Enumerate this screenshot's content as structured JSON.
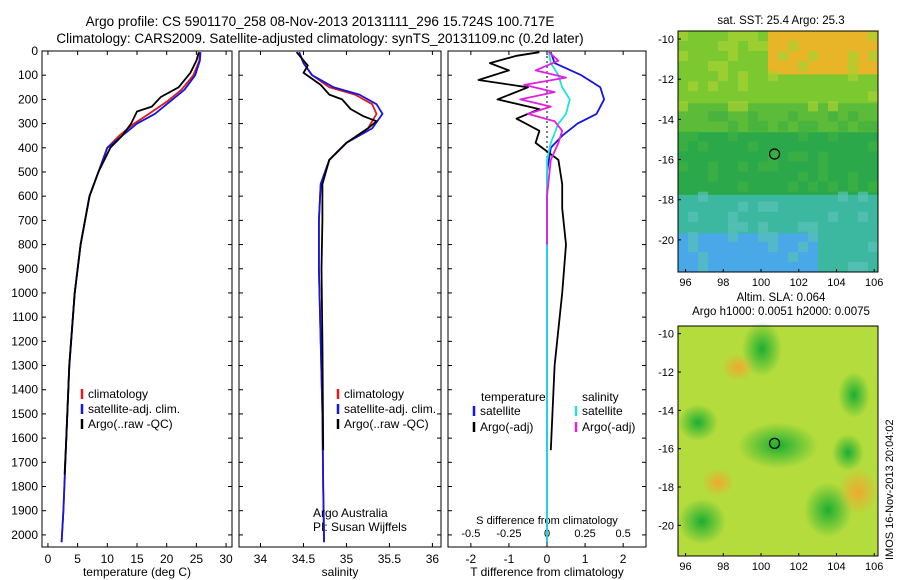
{
  "header": {
    "line1": "Argo profile: CS 5901170_258 08-Nov-2013 20131111_296 15.724S 100.717E",
    "line2": "Climatology: CARS2009. Satellite-adjusted climatology: synTS_20131109.nc (0.2d later)"
  },
  "colors": {
    "climatology": "#e31a1c",
    "satellite": "#1515e0",
    "argo": "#000000",
    "sat_salinity": "#22e0e0",
    "argo_salinity": "#e020e0"
  },
  "chart_data": [
    {
      "type": "line",
      "id": "temperature",
      "xlabel": "temperature (deg C)",
      "xlim": [
        -1,
        31
      ],
      "xticks": [
        0,
        5,
        10,
        15,
        20,
        25,
        30
      ],
      "ylim": [
        2050,
        0
      ],
      "yticks": [
        0,
        100,
        200,
        300,
        400,
        500,
        600,
        700,
        800,
        900,
        1000,
        1100,
        1200,
        1300,
        1400,
        1500,
        1600,
        1700,
        1800,
        1900,
        2000
      ],
      "legend": [
        "climatology",
        "satellite-adj. clim.",
        "Argo(..raw -QC)"
      ],
      "series": [
        {
          "name": "climatology",
          "color": "#e31a1c",
          "x": [
            25.6,
            25.5,
            24.5,
            22.5,
            20,
            17,
            14.5,
            12,
            10,
            8.5,
            7,
            5.5,
            4.5,
            3.6,
            3.1,
            2.6,
            2.3
          ],
          "y": [
            5,
            40,
            100,
            160,
            210,
            260,
            300,
            350,
            400,
            500,
            600,
            800,
            1000,
            1300,
            1600,
            1900,
            2030
          ]
        },
        {
          "name": "satellite-adj. clim.",
          "color": "#1515e0",
          "x": [
            25.7,
            25.6,
            24.8,
            23,
            20.5,
            18,
            15,
            12.5,
            10,
            8.5,
            7,
            5.5,
            4.5,
            3.6,
            3.1,
            2.6,
            2.3
          ],
          "y": [
            5,
            40,
            100,
            160,
            210,
            260,
            300,
            350,
            400,
            500,
            600,
            800,
            1000,
            1300,
            1600,
            1900,
            2030
          ]
        },
        {
          "name": "Argo(..raw -QC)",
          "color": "#000000",
          "x": [
            25.4,
            25,
            24,
            22,
            19,
            17.5,
            15,
            14,
            12.5,
            10.5,
            8.5,
            7,
            5.5,
            4.5,
            3.6,
            3.1,
            2.8
          ],
          "y": [
            5,
            40,
            90,
            150,
            190,
            230,
            250,
            300,
            350,
            400,
            500,
            600,
            800,
            1000,
            1300,
            1600,
            1750
          ]
        }
      ]
    },
    {
      "type": "line",
      "id": "salinity",
      "xlabel": "salinity",
      "xlim": [
        33.75,
        36.1
      ],
      "xticks": [
        34,
        34.5,
        35,
        35.5,
        36
      ],
      "ylim": [
        2050,
        0
      ],
      "yticks": [
        0,
        100,
        200,
        300,
        400,
        500,
        600,
        700,
        800,
        900,
        1000,
        1100,
        1200,
        1300,
        1400,
        1500,
        1600,
        1700,
        1800,
        1900,
        2000
      ],
      "legend": [
        "climatology",
        "satellite-adj. clim.",
        "Argo(..raw -QC)"
      ],
      "annotation": [
        "Argo Australia",
        "PI: Susan Wijffels"
      ],
      "series": [
        {
          "name": "climatology",
          "color": "#e31a1c",
          "x": [
            34.45,
            34.5,
            34.6,
            34.8,
            35.1,
            35.3,
            35.35,
            35.25,
            35.0,
            34.8,
            34.7,
            34.68,
            34.68,
            34.7,
            34.72,
            34.73,
            34.74
          ],
          "y": [
            5,
            50,
            100,
            150,
            180,
            220,
            260,
            320,
            380,
            450,
            550,
            700,
            900,
            1200,
            1500,
            1800,
            2030
          ]
        },
        {
          "name": "satellite-adj. clim.",
          "color": "#1515e0",
          "x": [
            34.45,
            34.5,
            34.6,
            34.85,
            35.15,
            35.35,
            35.42,
            35.3,
            35.0,
            34.8,
            34.7,
            34.68,
            34.68,
            34.7,
            34.72,
            34.73,
            34.74
          ],
          "y": [
            5,
            50,
            100,
            150,
            180,
            220,
            260,
            320,
            380,
            450,
            550,
            700,
            900,
            1200,
            1500,
            1800,
            2030
          ]
        },
        {
          "name": "Argo(..raw -QC)",
          "color": "#000000",
          "x": [
            34.42,
            34.48,
            34.55,
            34.5,
            34.62,
            34.7,
            34.8,
            34.95,
            35.05,
            35.2,
            35.35,
            35.25,
            35.0,
            34.8,
            34.72,
            34.72,
            34.71,
            34.72,
            34.73
          ],
          "y": [
            5,
            30,
            60,
            90,
            120,
            140,
            180,
            200,
            240,
            270,
            290,
            320,
            380,
            450,
            550,
            700,
            900,
            1200,
            1650
          ]
        }
      ]
    },
    {
      "type": "line",
      "id": "difference",
      "xlabel": "T difference from climatology",
      "xlabel_top": "S difference from climatology",
      "xlim": [
        -2.6,
        2.6
      ],
      "xticks": [
        -2,
        -1,
        0,
        1,
        2
      ],
      "xticks_top": [
        -0.5,
        -0.25,
        0,
        0.25,
        0.5
      ],
      "ylim": [
        2050,
        0
      ],
      "yticks": [
        0,
        100,
        200,
        300,
        400,
        500,
        600,
        700,
        800,
        900,
        1000,
        1100,
        1200,
        1300,
        1400,
        1500,
        1600,
        1700,
        1800,
        1900,
        2000
      ],
      "legend_temperature": {
        "title": "temperature",
        "items": [
          "satellite",
          "Argo(-adj)"
        ]
      },
      "legend_salinity": {
        "title": "salinity",
        "items": [
          "satellite",
          "Argo(-adj)"
        ]
      },
      "series": [
        {
          "name": "T satellite",
          "color": "#1515e0",
          "x": [
            0.1,
            0.2,
            0.9,
            1.4,
            1.5,
            1.3,
            0.8,
            0.4,
            0.1,
            0,
            0,
            0,
            0,
            0
          ],
          "y": [
            5,
            50,
            100,
            150,
            200,
            260,
            300,
            350,
            400,
            500,
            700,
            1000,
            1500,
            2030
          ]
        },
        {
          "name": "T Argo(-adj)",
          "color": "#000000",
          "x": [
            -0.2,
            -0.8,
            -1.5,
            -1,
            -1.8,
            -0.5,
            -1.3,
            -0.2,
            -0.8,
            -0.2,
            -0.3,
            0.3,
            0.4,
            0.4,
            0.5,
            0.4,
            0.2,
            0.1
          ],
          "y": [
            5,
            20,
            50,
            80,
            120,
            150,
            200,
            240,
            280,
            330,
            380,
            450,
            550,
            650,
            800,
            1000,
            1300,
            1650
          ]
        },
        {
          "name": "S satellite",
          "color": "#22e0e0",
          "x": [
            0.05,
            0.1,
            0.3,
            0.4,
            0.6,
            0.5,
            0.3,
            0.1,
            0,
            0,
            0,
            0,
            0
          ],
          "y": [
            5,
            50,
            100,
            150,
            200,
            260,
            300,
            380,
            450,
            600,
            1000,
            1500,
            2030
          ]
        },
        {
          "name": "S Argo(-adj)",
          "color": "#e020e0",
          "x": [
            0.05,
            0.3,
            -0.3,
            0.5,
            -0.6,
            0.2,
            -0.7,
            0.1,
            -0.5,
            0.2,
            0.4,
            0.3,
            0.1,
            0,
            0
          ],
          "y": [
            5,
            40,
            80,
            110,
            140,
            170,
            200,
            230,
            260,
            290,
            330,
            380,
            450,
            600,
            800
          ]
        }
      ]
    },
    {
      "type": "heatmap",
      "id": "sst-map",
      "title": "sat. SST: 25.4  Argo: 25.3",
      "xlim": [
        95.6,
        106.2
      ],
      "ylim": [
        -21.6,
        -9.6
      ],
      "xticks": [
        96,
        98,
        100,
        102,
        104,
        106
      ],
      "yticks": [
        -10,
        -12,
        -14,
        -16,
        -18,
        -20
      ],
      "marker": {
        "lon": 100.717,
        "lat": -15.724
      }
    },
    {
      "type": "heatmap",
      "id": "sla-map",
      "title_line1": "Altim. SLA: 0.064",
      "title_line2": "Argo h1000: 0.0051 h2000: 0.0075",
      "xlim": [
        95.6,
        106.2
      ],
      "ylim": [
        -21.6,
        -9.6
      ],
      "xticks": [
        96,
        98,
        100,
        102,
        104,
        106
      ],
      "yticks": [
        -10,
        -12,
        -14,
        -16,
        -18,
        -20
      ],
      "marker": {
        "lon": 100.717,
        "lat": -15.724
      }
    }
  ],
  "footer": {
    "stamp": "IMOS 16-Nov-2013 20:04:02"
  }
}
